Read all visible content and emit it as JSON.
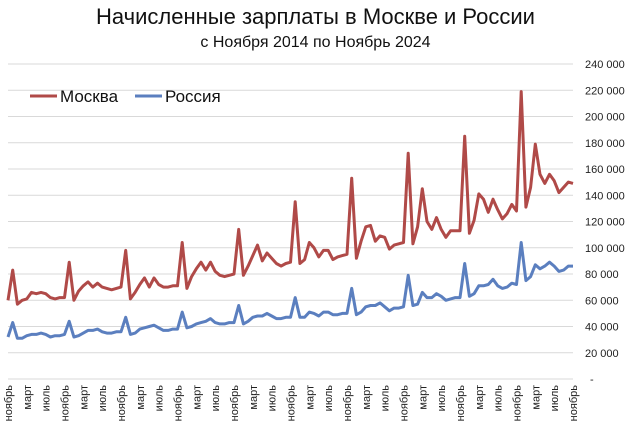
{
  "chart_data": {
    "type": "line",
    "title": "Начисленные зарплаты в Москве и России",
    "subtitle": "с Ноября 2014 по Ноябрь 2024",
    "xlabel": "",
    "ylabel": "",
    "ylim": [
      0,
      240000
    ],
    "y_ticks": [
      "-",
      "20 000",
      "40 000",
      "60 000",
      "80 000",
      "100 000",
      "120 000",
      "140 000",
      "160 000",
      "180 000",
      "200 000",
      "220 000",
      "240 000"
    ],
    "x_tick_labels": [
      "ноябрь",
      "март",
      "июль"
    ],
    "x_tick_every_months": 4,
    "grid": true,
    "legend_position": "top-left",
    "colors": {
      "Москва": "#b04a48",
      "Россия": "#5b7fbf"
    },
    "series": [
      {
        "name": "Москва",
        "values_thousands": [
          60,
          83,
          57,
          60,
          61,
          66,
          65,
          66,
          65,
          62,
          61,
          62,
          62,
          89,
          60,
          67,
          71,
          74,
          70,
          73,
          70,
          69,
          68,
          69,
          70,
          98,
          61,
          66,
          72,
          77,
          70,
          77,
          72,
          70,
          70,
          71,
          71,
          104,
          69,
          78,
          84,
          89,
          83,
          89,
          82,
          79,
          78,
          79,
          80,
          114,
          79,
          86,
          94,
          102,
          90,
          96,
          92,
          88,
          86,
          88,
          89,
          135,
          88,
          91,
          104,
          100,
          93,
          98,
          98,
          91,
          93,
          94,
          95,
          153,
          92,
          105,
          116,
          117,
          105,
          109,
          108,
          99,
          102,
          103,
          104,
          172,
          103,
          116,
          145,
          120,
          114,
          123,
          114,
          108,
          113,
          113,
          113,
          185,
          111,
          121,
          141,
          137,
          127,
          137,
          129,
          122,
          126,
          133,
          128,
          219,
          131,
          146,
          179,
          156,
          149,
          156,
          151,
          142,
          146,
          150,
          149
        ]
      },
      {
        "name": "Россия",
        "values_thousands": [
          32,
          43,
          31,
          31,
          33,
          34,
          34,
          35,
          34,
          32,
          33,
          33,
          34,
          44,
          32,
          33,
          35,
          37,
          37,
          38,
          36,
          35,
          35,
          36,
          36,
          47,
          34,
          35,
          38,
          39,
          40,
          41,
          39,
          37,
          37,
          38,
          38,
          51,
          39,
          40,
          42,
          43,
          44,
          46,
          43,
          42,
          42,
          43,
          43,
          56,
          42,
          44,
          47,
          48,
          48,
          50,
          48,
          46,
          46,
          47,
          47,
          62,
          47,
          47,
          51,
          50,
          48,
          51,
          51,
          49,
          49,
          50,
          50,
          69,
          49,
          51,
          55,
          56,
          56,
          58,
          55,
          52,
          54,
          54,
          55,
          79,
          56,
          57,
          66,
          62,
          62,
          65,
          63,
          60,
          61,
          62,
          62,
          88,
          63,
          65,
          71,
          71,
          72,
          76,
          71,
          69,
          70,
          73,
          72,
          104,
          75,
          78,
          87,
          84,
          86,
          89,
          86,
          82,
          83,
          86,
          86
        ]
      }
    ]
  }
}
